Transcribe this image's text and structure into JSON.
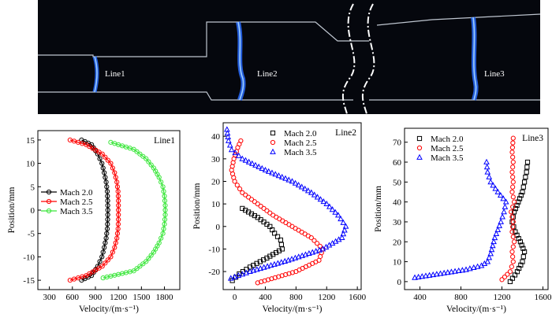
{
  "photo": {
    "labels": [
      "Line1",
      "Line2",
      "Line3"
    ],
    "background": "#05070d",
    "glow_color": "#2a6cff",
    "wall_color": "#bfc6d0"
  },
  "chart_data": [
    {
      "type": "scatter",
      "title": "Line1",
      "xlabel": "Velocity/(m·s⁻¹)",
      "ylabel": "Position/mm",
      "xlim": [
        150,
        2000
      ],
      "ylim": [
        -17,
        17
      ],
      "xticks": [
        300,
        600,
        900,
        1200,
        1500,
        1800
      ],
      "yticks": [
        -15,
        -10,
        -5,
        0,
        5,
        10,
        15
      ],
      "legend_position": "lower-left",
      "series": [
        {
          "name": "Mach 2.0",
          "color": "#000000",
          "marker": "circle",
          "y": [
            15,
            14,
            12,
            10,
            8,
            6,
            4,
            2,
            0,
            -2,
            -4,
            -6,
            -8,
            -10,
            -12,
            -14,
            -15
          ],
          "x": [
            720,
            850,
            930,
            985,
            1015,
            1040,
            1055,
            1060,
            1062,
            1060,
            1055,
            1040,
            1015,
            985,
            930,
            850,
            720
          ]
        },
        {
          "name": "Mach 2.5",
          "color": "#ff0000",
          "marker": "circle",
          "y": [
            15,
            14,
            12,
            10,
            8,
            6,
            4,
            2,
            0,
            -2,
            -4,
            -6,
            -8,
            -10,
            -12,
            -14,
            -15
          ],
          "x": [
            570,
            780,
            990,
            1100,
            1150,
            1180,
            1195,
            1200,
            1200,
            1200,
            1195,
            1180,
            1150,
            1100,
            990,
            780,
            570
          ]
        },
        {
          "name": "Mach 3.5",
          "color": "#39e639",
          "marker": "circle",
          "y": [
            14.5,
            13,
            11,
            9,
            7,
            5,
            3,
            1,
            -1,
            -3,
            -5,
            -7,
            -9,
            -11,
            -13,
            -14.5
          ],
          "x": [
            1100,
            1400,
            1560,
            1660,
            1730,
            1780,
            1800,
            1810,
            1810,
            1800,
            1780,
            1730,
            1660,
            1560,
            1400,
            1000
          ]
        }
      ]
    },
    {
      "type": "scatter",
      "title": "Line2",
      "xlabel": "Velocity/(m·s⁻¹)",
      "ylabel": "Position/mm",
      "xlim": [
        -150,
        1650
      ],
      "ylim": [
        -28,
        46
      ],
      "xticks": [
        0,
        400,
        800,
        1200,
        1600
      ],
      "yticks": [
        -20,
        -10,
        0,
        10,
        20,
        30,
        40
      ],
      "legend_position": "top-left",
      "series": [
        {
          "name": "Mach 2.0",
          "color": "#000000",
          "marker": "square",
          "y": [
            -24,
            -21,
            -18,
            -14,
            -10,
            -6,
            -3,
            0,
            4,
            8
          ],
          "x": [
            -30,
            60,
            200,
            420,
            620,
            600,
            520,
            460,
            300,
            100
          ]
        },
        {
          "name": "Mach 2.5",
          "color": "#ff0000",
          "marker": "circle",
          "y": [
            38,
            35,
            30,
            25,
            20,
            15,
            10,
            5,
            0,
            -5,
            -10,
            -15,
            -20,
            -25
          ],
          "x": [
            80,
            40,
            -10,
            -40,
            0,
            100,
            300,
            500,
            750,
            1000,
            1150,
            1100,
            800,
            300
          ]
        },
        {
          "name": "Mach 3.5",
          "color": "#0000ff",
          "marker": "triangle",
          "y": [
            43,
            38,
            34,
            30,
            25,
            20,
            15,
            10,
            5,
            0,
            -5,
            -10,
            -15,
            -20,
            -23
          ],
          "x": [
            -100,
            -80,
            -40,
            100,
            400,
            750,
            1000,
            1200,
            1350,
            1450,
            1400,
            1150,
            700,
            200,
            -50
          ]
        }
      ]
    },
    {
      "type": "scatter",
      "title": "Line3",
      "xlabel": "Velocity/(m·s⁻¹)",
      "ylabel": "Position/mm",
      "xlim": [
        250,
        1650
      ],
      "ylim": [
        -4,
        77
      ],
      "xticks": [
        400,
        800,
        1200,
        1600
      ],
      "yticks": [
        0,
        10,
        20,
        30,
        40,
        50,
        60,
        70
      ],
      "legend_position": "top-left",
      "series": [
        {
          "name": "Mach 2.0",
          "color": "#000000",
          "marker": "square",
          "y": [
            0,
            5,
            10,
            15,
            20,
            25,
            30,
            35,
            40,
            45,
            50,
            55,
            60
          ],
          "x": [
            1280,
            1350,
            1400,
            1420,
            1380,
            1330,
            1300,
            1320,
            1360,
            1400,
            1420,
            1440,
            1450
          ]
        },
        {
          "name": "Mach 2.5",
          "color": "#ff0000",
          "marker": "circle",
          "y": [
            1,
            5,
            10,
            15,
            20,
            25,
            30,
            35,
            40,
            45,
            50,
            55,
            60,
            65,
            72
          ],
          "x": [
            1200,
            1280,
            1310,
            1300,
            1320,
            1300,
            1310,
            1290,
            1320,
            1300,
            1310,
            1300,
            1310,
            1300,
            1310
          ]
        },
        {
          "name": "Mach 3.5",
          "color": "#0000ff",
          "marker": "triangle",
          "y": [
            2,
            4,
            6,
            8,
            10,
            14,
            18,
            22,
            26,
            30,
            35,
            40,
            45,
            50,
            55,
            60
          ],
          "x": [
            350,
            600,
            850,
            1000,
            1060,
            1090,
            1110,
            1130,
            1160,
            1190,
            1220,
            1240,
            1160,
            1090,
            1060,
            1050
          ]
        }
      ]
    }
  ]
}
